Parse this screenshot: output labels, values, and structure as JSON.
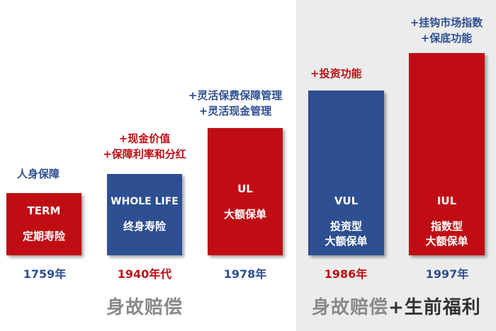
{
  "colors": {
    "red": "#c00d14",
    "blue": "#2e4f92",
    "gray_text": "#8a8a8a",
    "panel_bg": "#ececec"
  },
  "products": [
    {
      "code": "TERM",
      "name": "定期寿险",
      "year": "1759年",
      "features": [
        "人身保障"
      ]
    },
    {
      "code": "WHOLE LIFE",
      "name": "终身寿险",
      "year": "1940年代",
      "features": [
        "+现金价值",
        "+保障利率和分红"
      ]
    },
    {
      "code": "UL",
      "name": "大额保单",
      "year": "1978年",
      "features": [
        "+灵活保费保障管理",
        "+灵活现金管理"
      ]
    },
    {
      "code": "VUL",
      "name_line1": "投资型",
      "name_line2": "大额保单",
      "year": "1986年",
      "features": [
        "+投资功能"
      ]
    },
    {
      "code": "IUL",
      "name_line1": "指数型",
      "name_line2": "大额保单",
      "year": "1997年",
      "features": [
        "+挂钩市场指数",
        "+保底功能"
      ]
    }
  ],
  "footer": {
    "left": "身故赔偿",
    "right_gray": "身故赔偿",
    "right_dark": "+生前福利"
  }
}
